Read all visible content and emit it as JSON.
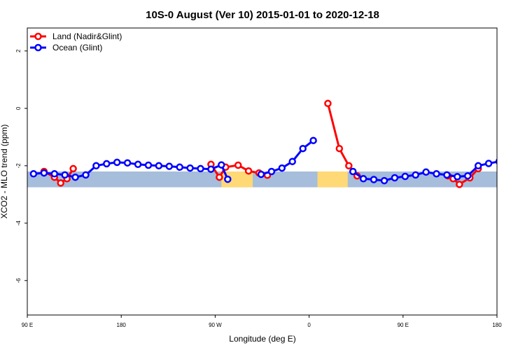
{
  "chart_data": {
    "type": "line",
    "title": "10S-0 August (Ver 10)   2015-01-01 to 2020-12-18",
    "xlabel": "Longitude (deg E)",
    "ylabel": "XCO2 - MLO trend (ppm)",
    "xlim": [
      90,
      540
    ],
    "ylim": [
      -7.2,
      2.8
    ],
    "x_ticks": [
      {
        "value": 90,
        "label": "90 E"
      },
      {
        "value": 180,
        "label": "180"
      },
      {
        "value": 270,
        "label": "90 W"
      },
      {
        "value": 360,
        "label": "0"
      },
      {
        "value": 450,
        "label": "90 E"
      },
      {
        "value": 540,
        "label": "180"
      }
    ],
    "y_ticks": [
      {
        "value": 2,
        "label": "2"
      },
      {
        "value": 0,
        "label": "0"
      },
      {
        "value": -2,
        "label": "-2"
      },
      {
        "value": -4,
        "label": "-4"
      },
      {
        "value": -6,
        "label": "-6"
      }
    ],
    "map_band": {
      "ymin": -2.75,
      "ymax": -2.2,
      "ocean_color": "#a6bddb",
      "land_color": "#fed976"
    },
    "map_land_ranges": [
      [
        276,
        306
      ],
      [
        368,
        397
      ]
    ],
    "grid": false,
    "legend_position": "top-left",
    "series": [
      {
        "name": "Land (Nadir&Glint)",
        "color": "#ff0000",
        "segments": [
          [
            [
              106,
              -2.2
            ],
            [
              116,
              -2.4
            ],
            [
              122,
              -2.6
            ],
            [
              128,
              -2.45
            ],
            [
              134,
              -2.1
            ]
          ],
          [
            [
              266,
              -1.95
            ],
            [
              274,
              -2.4
            ],
            [
              280,
              -2.05
            ],
            [
              292,
              -1.98
            ],
            [
              302,
              -2.18
            ],
            [
              312,
              -2.25
            ],
            [
              320,
              -2.33
            ]
          ],
          [
            [
              378,
              0.17
            ],
            [
              389,
              -1.4
            ],
            [
              398,
              -2.0
            ],
            [
              406,
              -2.35
            ]
          ],
          [
            [
              493,
              -2.35
            ],
            [
              498,
              -2.45
            ],
            [
              504,
              -2.65
            ],
            [
              514,
              -2.42
            ],
            [
              522,
              -2.1
            ]
          ]
        ]
      },
      {
        "name": "Ocean (Glint)",
        "color": "#0000ff",
        "segments": [
          [
            [
              96,
              -2.28
            ],
            [
              106,
              -2.25
            ],
            [
              116,
              -2.28
            ],
            [
              126,
              -2.32
            ],
            [
              136,
              -2.4
            ],
            [
              146,
              -2.32
            ],
            [
              156,
              -2.0
            ],
            [
              166,
              -1.93
            ],
            [
              176,
              -1.88
            ],
            [
              186,
              -1.9
            ],
            [
              196,
              -1.95
            ],
            [
              206,
              -1.98
            ],
            [
              216,
              -2.0
            ],
            [
              226,
              -2.02
            ],
            [
              236,
              -2.05
            ],
            [
              246,
              -2.08
            ],
            [
              256,
              -2.1
            ],
            [
              266,
              -2.12
            ],
            [
              276,
              -1.97
            ],
            [
              282,
              -2.47
            ]
          ],
          [
            [
              314,
              -2.3
            ],
            [
              324,
              -2.2
            ],
            [
              334,
              -2.08
            ],
            [
              344,
              -1.85
            ],
            [
              354,
              -1.4
            ],
            [
              364,
              -1.12
            ]
          ],
          [
            [
              402,
              -2.2
            ],
            [
              412,
              -2.45
            ],
            [
              422,
              -2.48
            ],
            [
              432,
              -2.52
            ],
            [
              442,
              -2.42
            ],
            [
              452,
              -2.37
            ],
            [
              462,
              -2.32
            ],
            [
              472,
              -2.22
            ],
            [
              482,
              -2.28
            ],
            [
              492,
              -2.32
            ],
            [
              502,
              -2.38
            ],
            [
              512,
              -2.35
            ],
            [
              522,
              -2.0
            ],
            [
              532,
              -1.92
            ],
            [
              542,
              -1.85
            ]
          ]
        ]
      }
    ]
  }
}
